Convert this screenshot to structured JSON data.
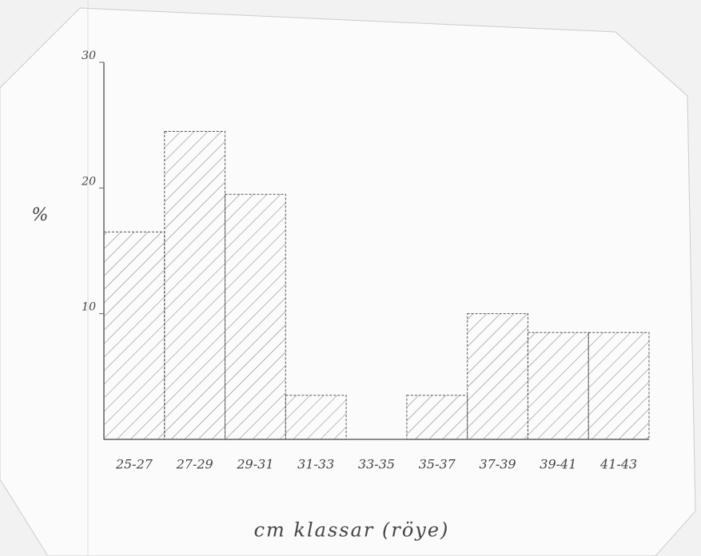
{
  "chart_data": {
    "type": "bar",
    "categories": [
      "25-27",
      "27-29",
      "29-31",
      "31-33",
      "33-35",
      "35-37",
      "37-39",
      "39-41",
      "41-43"
    ],
    "values": [
      16.5,
      24.5,
      19.5,
      3.5,
      0,
      3.5,
      10,
      8.5,
      8.5
    ],
    "y_label": "%",
    "x_label": "cm klassar (röye)",
    "ylim": [
      0,
      30
    ],
    "yticks": [
      10,
      20,
      30
    ],
    "color": "#555555",
    "grid": false
  }
}
